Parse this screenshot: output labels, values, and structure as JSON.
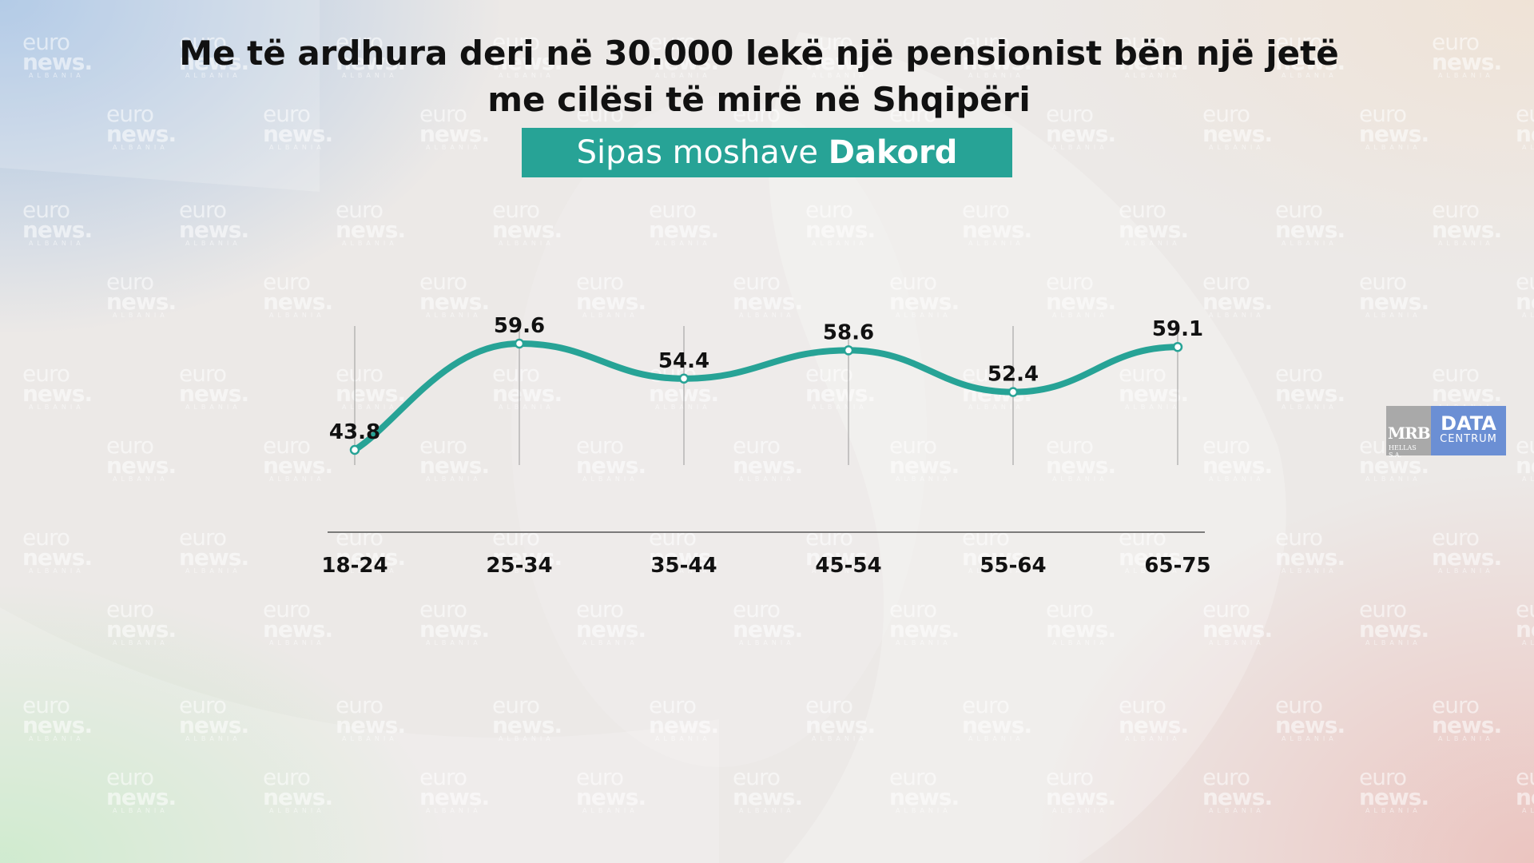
{
  "header": {
    "title": "Me të ardhura deri në 30.000 lekë një pensionist bën një jetë me cilësi të mirë në Shqipëri",
    "subtitle_prefix": "Sipas moshave",
    "subtitle_bold": "Dakord"
  },
  "watermark": {
    "line1": "euro",
    "line2": "news.",
    "line3": "ALBANIA"
  },
  "logo": {
    "left_text": "MRB",
    "left_small": "HELLAS S.A.",
    "right_text": "DATA",
    "right_small": "CENTRUM",
    "left_color": "#a9a9a9",
    "right_color": "#6b8fd4"
  },
  "chart_data": {
    "type": "line",
    "title": "Me të ardhura deri në 30.000 lekë një pensionist bën një jetë me cilësi të mirë në Shqipëri",
    "subtitle": "Sipas moshave Dakord",
    "categories": [
      "18-24",
      "25-34",
      "35-44",
      "45-54",
      "55-64",
      "65-75"
    ],
    "series": [
      {
        "values": [
          43.8,
          59.6,
          54.4,
          58.6,
          52.4,
          59.1
        ],
        "color": "#27a396"
      }
    ],
    "smooth": true,
    "grid": "vertical lines at categories",
    "legend": "none",
    "xlabel": "",
    "ylabel": "",
    "colors": {
      "line": "#27a396",
      "axis": "#555555",
      "grid": "#9a9a9a"
    }
  }
}
